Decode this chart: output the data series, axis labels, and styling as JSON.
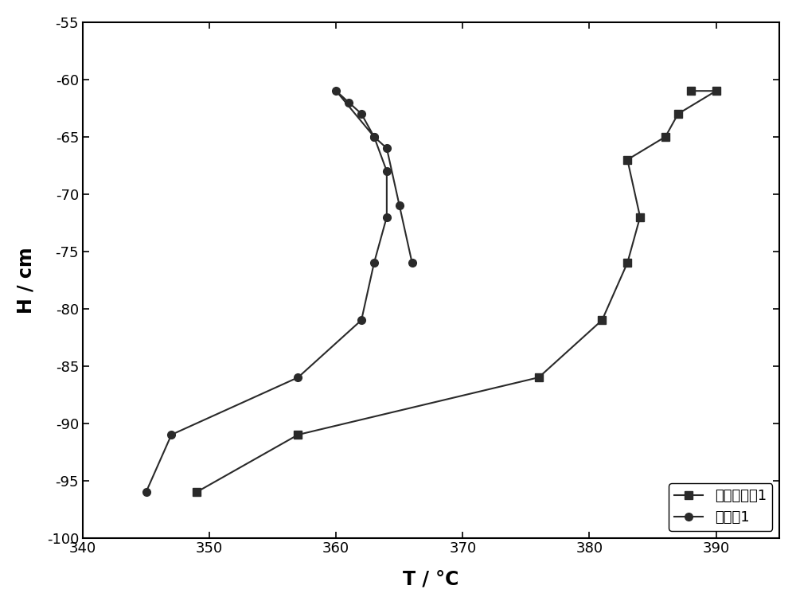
{
  "series1_label": "对比实施例1",
  "series2_label": "实施例1",
  "series1_T": [
    349,
    357,
    376,
    381,
    383,
    384,
    383,
    386,
    387,
    390,
    388
  ],
  "series1_H": [
    -96,
    -91,
    -86,
    -81,
    -76,
    -72,
    -67,
    -65,
    -63,
    -61,
    -61
  ],
  "series2_T": [
    345,
    347,
    357,
    362,
    363,
    364,
    364,
    363,
    362,
    361,
    360,
    363,
    364,
    366,
    366
  ],
  "series2_H": [
    -96,
    -91,
    -86,
    -81,
    -76,
    -72,
    -68,
    -65,
    -63,
    -62,
    -61,
    -65,
    -66,
    -71,
    -76
  ],
  "xlim": [
    340,
    395
  ],
  "ylim": [
    -100,
    -55
  ],
  "xticks": [
    340,
    350,
    360,
    370,
    380,
    390
  ],
  "yticks": [
    -100,
    -95,
    -90,
    -85,
    -80,
    -75,
    -70,
    -65,
    -60,
    -55
  ],
  "xlabel": "T / °C",
  "ylabel": "H / cm",
  "line_color": "#2a2a2a",
  "bg_color": "#ffffff",
  "label_fontsize": 17,
  "tick_fontsize": 13,
  "legend_fontsize": 13
}
